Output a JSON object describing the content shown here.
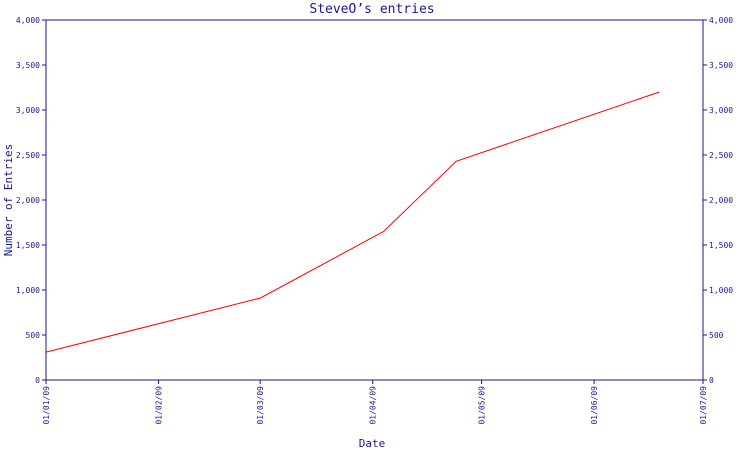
{
  "chart_data": {
    "type": "line",
    "title": "SteveO’s entries",
    "xlabel": "Date",
    "ylabel": "Number of Entries",
    "x_ticks": [
      "01/01/09",
      "01/02/09",
      "01/03/09",
      "01/04/09",
      "01/05/09",
      "01/06/09",
      "01/07/09"
    ],
    "x_tick_dates": [
      "2009-01-01",
      "2009-02-01",
      "2009-03-01",
      "2009-04-01",
      "2009-05-01",
      "2009-06-01",
      "2009-07-01"
    ],
    "y_ticks": [
      "0",
      "500",
      "1,000",
      "1,500",
      "2,000",
      "2,500",
      "3,000",
      "3,500",
      "4,000"
    ],
    "ylim": [
      0,
      4000
    ],
    "xlim": [
      "2009-01-01",
      "2009-07-01"
    ],
    "grid": false,
    "y_axis_mirrored_right": true,
    "series": [
      {
        "color": "#ff0000",
        "x": [
          "2009-01-01",
          "2009-03-01",
          "2009-04-04",
          "2009-04-24",
          "2009-06-19"
        ],
        "y": [
          310,
          910,
          1650,
          2430,
          3200
        ]
      }
    ]
  },
  "colors": {
    "axis": "#1a1a8c",
    "line": "#ff0000",
    "background": "#ffffff"
  }
}
